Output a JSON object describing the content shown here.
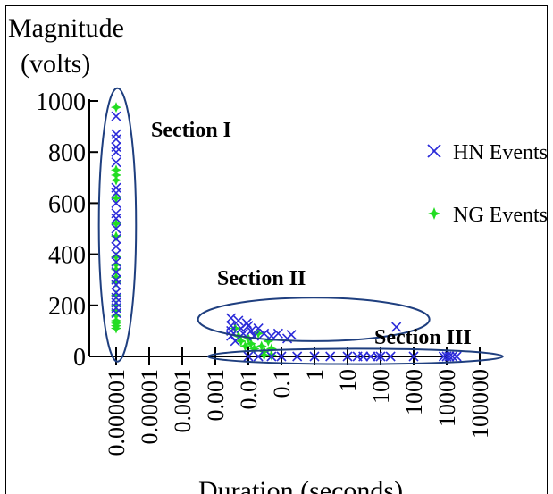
{
  "chart_data": {
    "type": "scatter",
    "title": "",
    "ylabel_lines": [
      "Magnitude",
      "(volts)"
    ],
    "xlabel": "Duration (seconds)",
    "x_scale": "log",
    "xlim": [
      1e-07,
      100000
    ],
    "ylim": [
      0,
      1000
    ],
    "y_ticks": [
      0,
      200,
      400,
      600,
      800,
      1000
    ],
    "y_tick_labels": [
      "0",
      "200",
      "400",
      "600",
      "800",
      "1000"
    ],
    "x_ticks": [
      1e-06,
      1e-05,
      0.0001,
      0.001,
      0.01,
      0.1,
      1,
      10,
      100,
      1000,
      10000,
      100000
    ],
    "x_tick_labels": [
      "0.000001",
      "0.00001",
      "0.0001",
      "0.001",
      "0.01",
      "0.1",
      "1",
      "10",
      "100",
      "1000",
      "10000",
      "100000"
    ],
    "grid": false,
    "legend_position": "right",
    "series": [
      {
        "name": "HN Events",
        "marker": "x",
        "color": "#2b2bd9",
        "points": [
          [
            1e-06,
            940
          ],
          [
            1e-06,
            870
          ],
          [
            1e-06,
            850
          ],
          [
            1e-06,
            820
          ],
          [
            1e-06,
            800
          ],
          [
            1e-06,
            760
          ],
          [
            1e-06,
            660
          ],
          [
            1e-06,
            640
          ],
          [
            1e-06,
            600
          ],
          [
            1e-06,
            560
          ],
          [
            1e-06,
            540
          ],
          [
            1e-06,
            500
          ],
          [
            1e-06,
            460
          ],
          [
            1e-06,
            430
          ],
          [
            1e-06,
            400
          ],
          [
            1e-06,
            370
          ],
          [
            1e-06,
            330
          ],
          [
            1e-06,
            300
          ],
          [
            1e-06,
            280
          ],
          [
            1e-06,
            250
          ],
          [
            1e-06,
            230
          ],
          [
            1e-06,
            210
          ],
          [
            1e-06,
            190
          ],
          [
            1e-06,
            170
          ],
          [
            0.003,
            150
          ],
          [
            0.003,
            120
          ],
          [
            0.003,
            100
          ],
          [
            0.003,
            80
          ],
          [
            0.004,
            60
          ],
          [
            0.005,
            140
          ],
          [
            0.006,
            110
          ],
          [
            0.007,
            90
          ],
          [
            0.009,
            130
          ],
          [
            0.01,
            120
          ],
          [
            0.012,
            100
          ],
          [
            0.015,
            80
          ],
          [
            0.02,
            110
          ],
          [
            0.03,
            90
          ],
          [
            0.05,
            80
          ],
          [
            0.08,
            90
          ],
          [
            0.15,
            70
          ],
          [
            0.2,
            85
          ],
          [
            300,
            115
          ],
          [
            0.01,
            0
          ],
          [
            0.02,
            0
          ],
          [
            0.05,
            0
          ],
          [
            0.1,
            0
          ],
          [
            0.3,
            0
          ],
          [
            1,
            0
          ],
          [
            3,
            0
          ],
          [
            10,
            0
          ],
          [
            20,
            0
          ],
          [
            30,
            0
          ],
          [
            50,
            0
          ],
          [
            80,
            0
          ],
          [
            100,
            0
          ],
          [
            200,
            0
          ],
          [
            1000,
            0
          ],
          [
            8000,
            0
          ],
          [
            10000,
            0
          ],
          [
            12000,
            0
          ],
          [
            15000,
            0
          ],
          [
            20000,
            0
          ]
        ]
      },
      {
        "name": "NG Events",
        "marker": "star",
        "color": "#22dd22",
        "points": [
          [
            1e-06,
            975
          ],
          [
            1e-06,
            730
          ],
          [
            1e-06,
            710
          ],
          [
            1e-06,
            690
          ],
          [
            1e-06,
            620
          ],
          [
            1e-06,
            520
          ],
          [
            1e-06,
            470
          ],
          [
            1e-06,
            390
          ],
          [
            1e-06,
            360
          ],
          [
            1e-06,
            340
          ],
          [
            1e-06,
            310
          ],
          [
            1e-06,
            290
          ],
          [
            1e-06,
            240
          ],
          [
            1e-06,
            200
          ],
          [
            1e-06,
            180
          ],
          [
            1e-06,
            160
          ],
          [
            1e-06,
            140
          ],
          [
            1e-06,
            130
          ],
          [
            1e-06,
            120
          ],
          [
            1e-06,
            110
          ],
          [
            0.004,
            110
          ],
          [
            0.005,
            80
          ],
          [
            0.006,
            60
          ],
          [
            0.008,
            40
          ],
          [
            0.01,
            70
          ],
          [
            0.012,
            50
          ],
          [
            0.015,
            30
          ],
          [
            0.02,
            90
          ],
          [
            0.025,
            40
          ],
          [
            0.03,
            20
          ],
          [
            0.04,
            60
          ],
          [
            0.05,
            30
          ],
          [
            0.03,
            5
          ],
          [
            0.05,
            5
          ]
        ]
      }
    ],
    "annotations": [
      {
        "label": "Section I",
        "shape": "ellipse",
        "x_range": [
          3e-07,
          4e-06
        ],
        "y_range": [
          -20,
          1050
        ]
      },
      {
        "label": "Section II",
        "shape": "ellipse",
        "x_range": [
          0.0003,
          3000
        ],
        "y_range": [
          60,
          230
        ]
      },
      {
        "label": "Section III",
        "shape": "ellipse",
        "x_range": [
          0.0006,
          500000
        ],
        "y_range": [
          -30,
          30
        ]
      }
    ]
  }
}
